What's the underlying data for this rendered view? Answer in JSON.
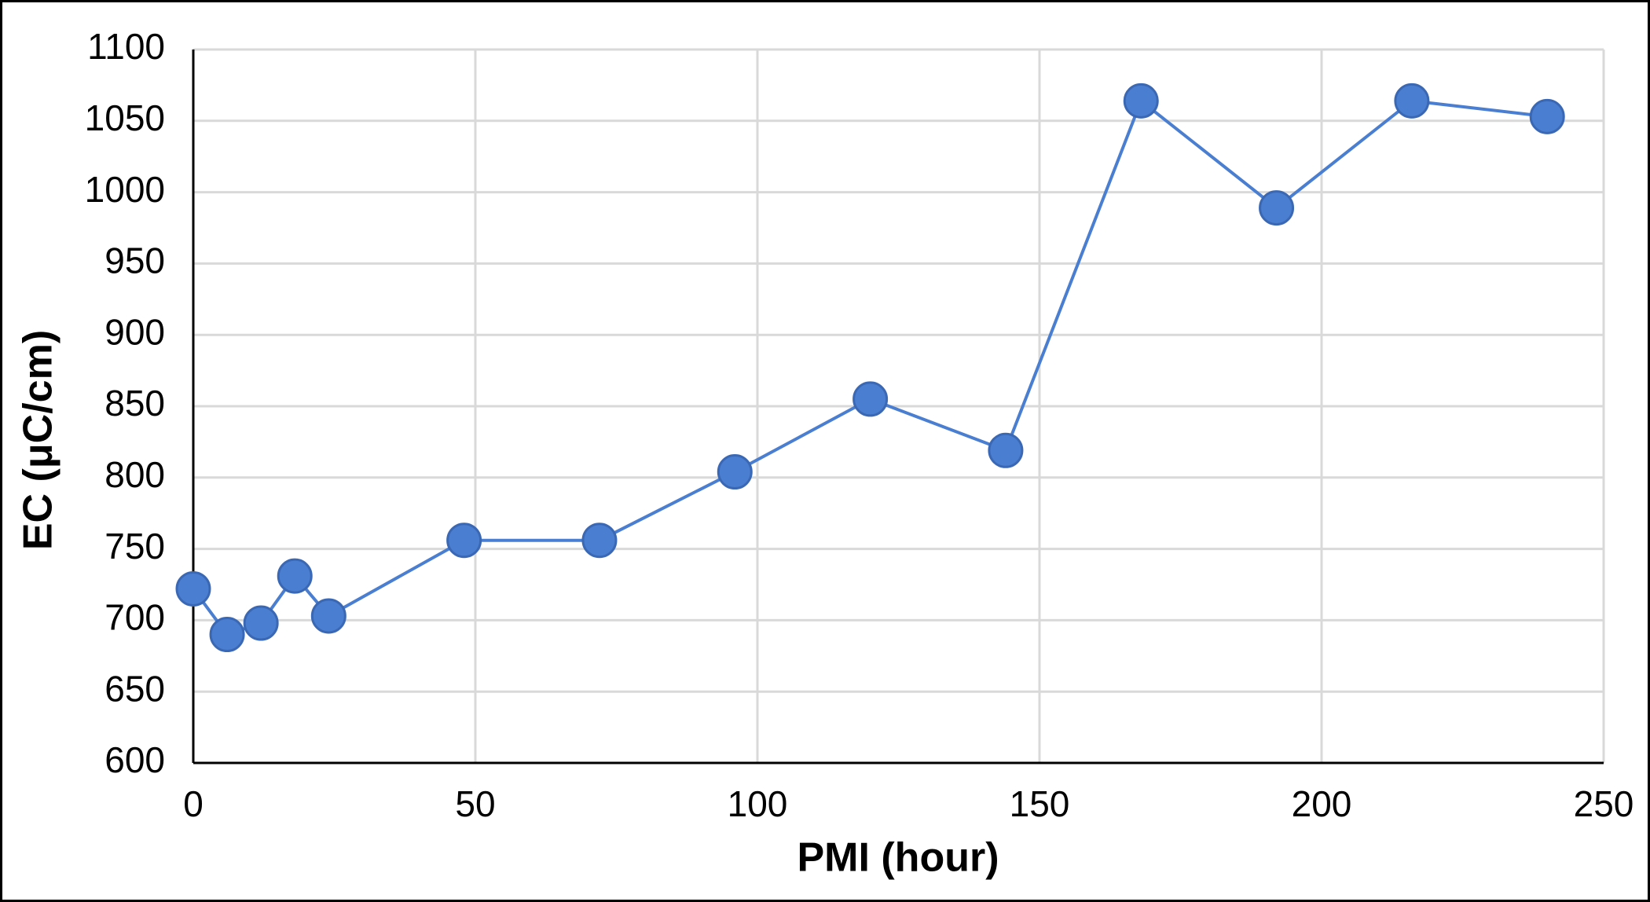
{
  "chart_data": {
    "type": "line",
    "x_label": "PMI (hour)",
    "y_label": "EC (μC/cm)",
    "x": [
      0,
      6,
      12,
      18,
      24,
      48,
      72,
      96,
      120,
      144,
      168,
      192,
      216,
      240
    ],
    "values": [
      722,
      690,
      698,
      731,
      703,
      756,
      756,
      804,
      855,
      819,
      1064,
      989,
      1064,
      1053
    ],
    "color": "#4a7ed0",
    "xlim": [
      0,
      250
    ],
    "xticks": [
      0,
      50,
      100,
      150,
      200,
      250
    ],
    "ylim": [
      600,
      1100
    ],
    "yticks": [
      600,
      650,
      700,
      750,
      800,
      850,
      900,
      950,
      1000,
      1050,
      1100
    ],
    "grid": true
  }
}
